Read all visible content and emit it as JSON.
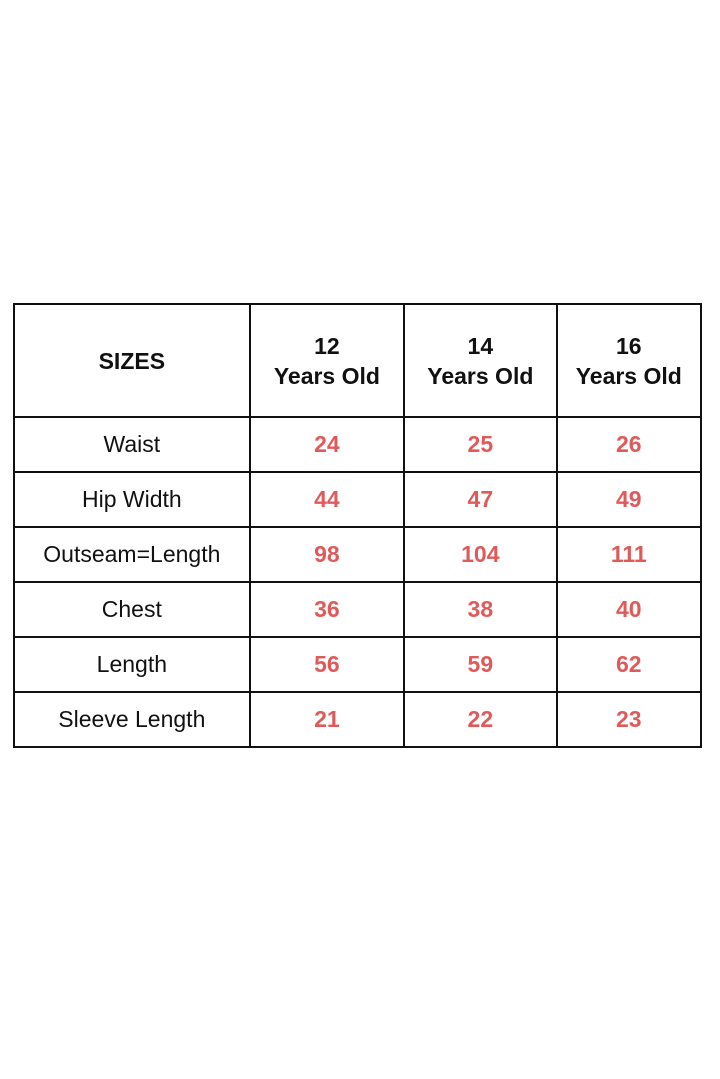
{
  "header": {
    "label": "SIZES",
    "columns": [
      {
        "number": "12",
        "unit": "Years Old"
      },
      {
        "number": "14",
        "unit": "Years Old"
      },
      {
        "number": "16",
        "unit": "Years Old"
      }
    ]
  },
  "rows": [
    {
      "label": "Waist",
      "values": [
        "24",
        "25",
        "26"
      ]
    },
    {
      "label": "Hip Width",
      "values": [
        "44",
        "47",
        "49"
      ]
    },
    {
      "label": "Outseam=Length",
      "values": [
        "98",
        "104",
        "111"
      ]
    },
    {
      "label": "Chest",
      "values": [
        "36",
        "38",
        "40"
      ]
    },
    {
      "label": "Length",
      "values": [
        "56",
        "59",
        "62"
      ]
    },
    {
      "label": "Sleeve Length",
      "values": [
        "21",
        "22",
        "23"
      ]
    }
  ],
  "colors": {
    "value_text": "#e05a5a",
    "label_text": "#111111",
    "border": "#111111"
  }
}
